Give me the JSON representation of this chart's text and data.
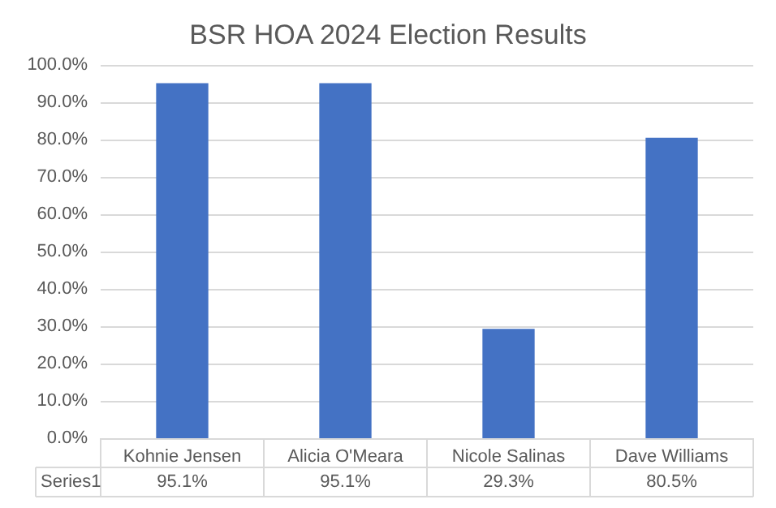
{
  "chart_data": {
    "type": "bar",
    "title": "BSR HOA 2024 Election Results",
    "categories": [
      "Kohnie Jensen",
      "Alicia O'Meara",
      "Nicole Salinas",
      "Dave Williams"
    ],
    "series": [
      {
        "name": "Series1",
        "color": "#4472c4",
        "values": [
          95.1,
          95.1,
          29.3,
          80.5
        ],
        "value_labels": [
          "95.1%",
          "95.1%",
          "29.3%",
          "80.5%"
        ]
      }
    ],
    "ylim": [
      0,
      100
    ],
    "yticks": [
      {
        "value": 0,
        "label": "0.0%"
      },
      {
        "value": 10,
        "label": "10.0%"
      },
      {
        "value": 20,
        "label": "20.0%"
      },
      {
        "value": 30,
        "label": "30.0%"
      },
      {
        "value": 40,
        "label": "40.0%"
      },
      {
        "value": 50,
        "label": "50.0%"
      },
      {
        "value": 60,
        "label": "60.0%"
      },
      {
        "value": 70,
        "label": "70.0%"
      },
      {
        "value": 80,
        "label": "80.0%"
      },
      {
        "value": 90,
        "label": "90.0%"
      },
      {
        "value": 100,
        "label": "100.0%"
      }
    ],
    "grid": "y",
    "legend": false
  }
}
